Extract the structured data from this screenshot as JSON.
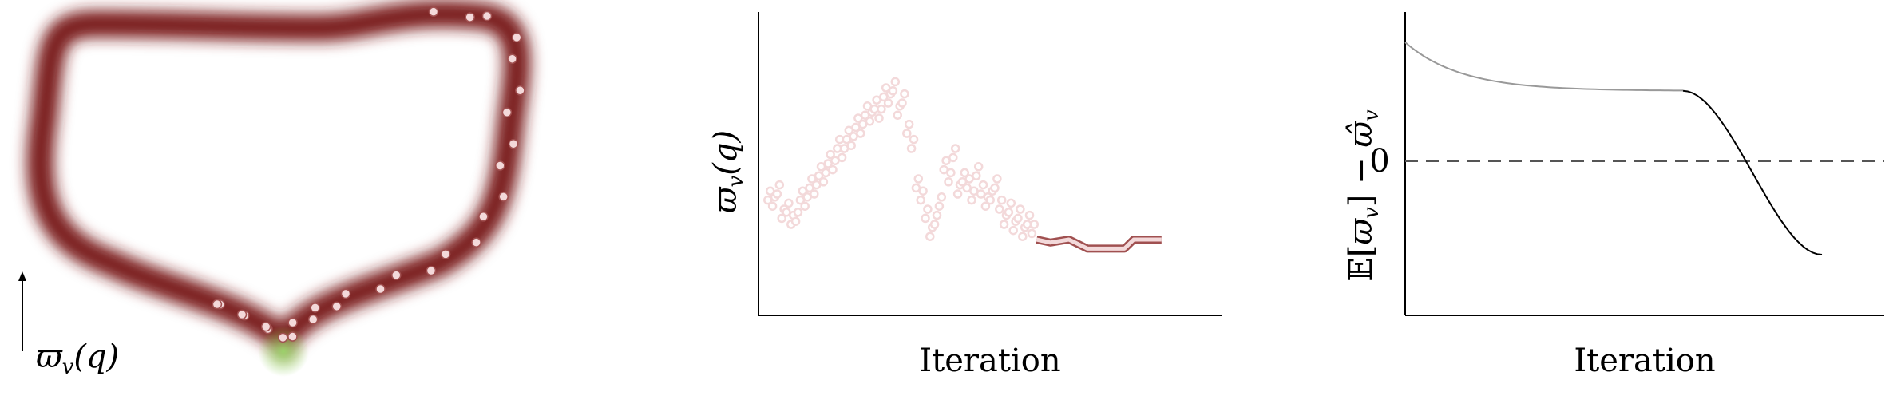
{
  "left_panel": {
    "axis_label": "ϖ_v(q)",
    "axis_label_main": "ϖ",
    "axis_label_sub": "v",
    "axis_label_arg": "(q)",
    "colors": {
      "band": "#7a1a1a",
      "dot_fill": "#f3d9da",
      "dot_stroke": "#a05050",
      "highlight": "#9bd66a"
    }
  },
  "chart_data": [
    {
      "type": "scatter",
      "title": "",
      "xlabel": "Iteration",
      "ylabel": "ϖ_v(q)",
      "ylabel_main": "ϖ",
      "ylabel_sub": "v",
      "ylabel_arg": "(q)",
      "xlim": [
        0,
        100
      ],
      "ylim": [
        0,
        100
      ],
      "grid": false,
      "x": [
        1,
        2,
        3,
        4,
        5,
        6,
        7,
        8,
        9,
        10,
        11,
        12,
        13,
        14,
        15,
        16,
        17,
        18,
        19,
        20,
        21,
        22,
        23,
        24,
        25,
        26,
        27,
        28,
        29,
        30,
        31,
        32,
        33,
        34,
        35,
        36,
        37,
        38,
        39,
        40,
        41,
        42,
        43,
        44,
        45,
        46,
        47,
        48,
        49,
        50,
        51,
        52,
        53,
        54,
        55,
        56,
        57,
        58
      ],
      "y": [
        38,
        36,
        40,
        32,
        34,
        30,
        31,
        38,
        36,
        42,
        40,
        46,
        44,
        50,
        48,
        55,
        52,
        58,
        56,
        62,
        60,
        66,
        64,
        68,
        65,
        72,
        70,
        74,
        66,
        70,
        60,
        55,
        42,
        38,
        32,
        26,
        30,
        36,
        48,
        44,
        52,
        40,
        44,
        42,
        38,
        46,
        40,
        36,
        38,
        42,
        35,
        30,
        34,
        28,
        32,
        26,
        30,
        27
      ],
      "series_colors": [
        "#f3d9da",
        "#a05050"
      ]
    },
    {
      "type": "line",
      "title": "",
      "xlabel": "Iteration",
      "ylabel": "𝔼[ϖ_v] − ϖ̂_v",
      "ylabel_parts": {
        "e": "𝔼[",
        "w": "ϖ",
        "s1": "v",
        "close": "] − ",
        "hat": "ϖ̂",
        "s2": "v"
      },
      "zero_tick": "0",
      "x": [
        0,
        10,
        20,
        30,
        40,
        50,
        60,
        65,
        70,
        75,
        80,
        85,
        90
      ],
      "y": [
        85,
        70,
        65,
        63,
        62,
        61.5,
        61,
        58,
        50,
        35,
        15,
        -5,
        -20
      ],
      "ylim": [
        -50,
        100
      ],
      "series_colors": [
        "#999999",
        "#000000"
      ],
      "grid": false
    }
  ]
}
